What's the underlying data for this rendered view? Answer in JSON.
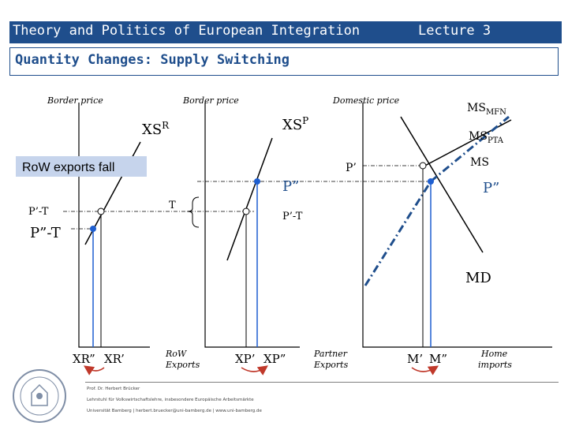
{
  "header": {
    "title": "Theory and Politics of European Integration",
    "lecture": "Lecture  3"
  },
  "subtitle": "Quantity Changes: Supply Switching",
  "panel_headers": {
    "left": "Border price",
    "middle": "Border price",
    "right": "Domestic price"
  },
  "curve_labels": {
    "xsr": "XS",
    "xsr_sup": "R",
    "xsp": "XS",
    "xsp_sup": "P",
    "ms_mfn": "MS",
    "ms_mfn_sub": "MFN",
    "ms_pta": "MS",
    "ms_pta_sub": "PTA",
    "ms": "MS",
    "md": "MD"
  },
  "price_labels": {
    "p_prime": "P’",
    "p_dprime_mid": "P”",
    "p_dprime_right": "P”",
    "p_prime_t_left": "P’-T",
    "p_dprime_t_left": "P”-T",
    "p_prime_t_mid": "P’-T",
    "tariff": "T"
  },
  "callout": "RoW exports fall",
  "axis_labels": {
    "xr_dprime": "XR”",
    "xr_prime": "XR’",
    "row_exports_1": "RoW",
    "row_exports_2": "Exports",
    "xp_prime": "XP’",
    "xp_dprime": "XP”",
    "partner_exports_1": "Partner",
    "partner_exports_2": "Exports",
    "m_prime": "M’",
    "m_dprime": "M”",
    "home_imports_1": "Home",
    "home_imports_2": "imports"
  },
  "footer": {
    "line1": "Prof. Dr. Herbert Brücker",
    "line2": "Lehrstuhl für Volkswirtschaftslehre, insbesondere Europäische Arbeitsmärkte",
    "line3": "Universität Bamberg | herbert.bruecker@uni-bamberg.de | www.uni-bamberg.de"
  },
  "colors": {
    "brand": "#1f4e8c",
    "highlight": "#1f5fd0",
    "arrow": "#c0392b",
    "callout_bg": "#c6d4ec"
  },
  "seal": {
    "icon": "university-seal-icon"
  }
}
